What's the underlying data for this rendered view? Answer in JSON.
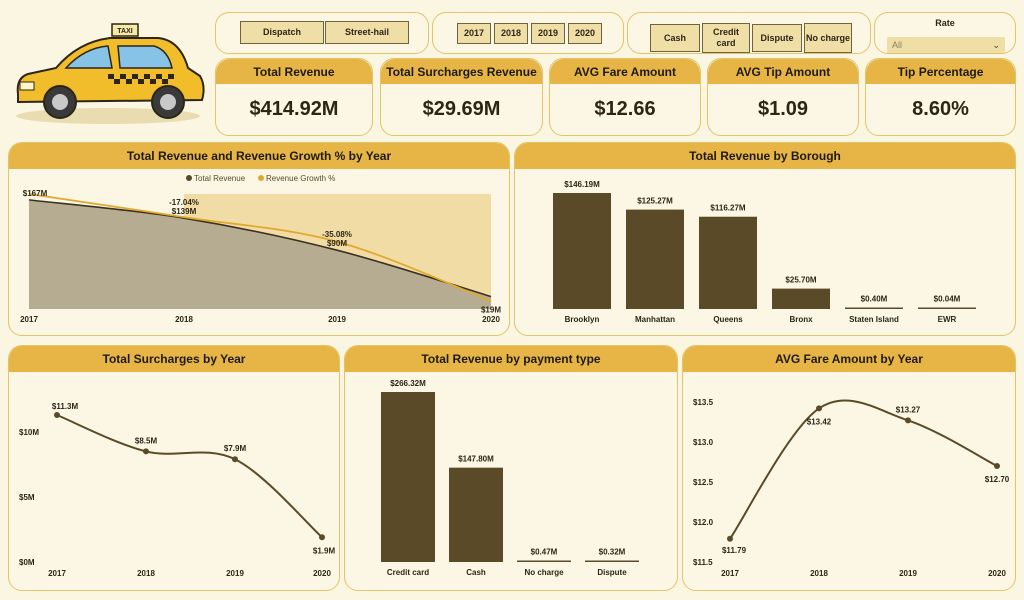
{
  "filters": {
    "trip_type": [
      "Dispatch",
      "Street-hail"
    ],
    "years": [
      "2017",
      "2018",
      "2019",
      "2020"
    ],
    "payment": [
      "Cash",
      "Credit card",
      "Dispute",
      "No charge"
    ],
    "rate": {
      "title": "Rate",
      "value": "All"
    }
  },
  "kpis": [
    {
      "label": "Total Revenue",
      "value": "$414.92M"
    },
    {
      "label": "Total Surcharges Revenue",
      "value": "$29.69M"
    },
    {
      "label": "AVG Fare Amount",
      "value": "$12.66"
    },
    {
      "label": "AVG Tip Amount",
      "value": "$1.09"
    },
    {
      "label": "Tip Percentage",
      "value": "8.60%"
    }
  ],
  "colors": {
    "accent": "#e7b546",
    "dark": "#5b4a28",
    "line": "#e0a92e",
    "area": "#b5ac92",
    "band": "#f2dca6"
  },
  "icons": {
    "logo": "taxi-cab-icon",
    "dropdown": "chevron-down-icon"
  },
  "chart_data": [
    {
      "type": "area",
      "title": "Total Revenue and Revenue Growth % by Year",
      "legend": [
        "Total Revenue",
        "Revenue Growth %"
      ],
      "legend_position": "top-center",
      "categories": [
        "2017",
        "2018",
        "2019",
        "2020"
      ],
      "series": [
        {
          "name": "Total Revenue",
          "values": [
            167,
            139,
            90,
            19
          ],
          "labels": [
            "$167M",
            "$139M",
            "$90M",
            "$19M"
          ]
        },
        {
          "name": "Revenue Growth %",
          "values": [
            null,
            -17.04,
            -35.08,
            -78.9
          ],
          "labels": [
            "",
            "-17.04%",
            "-35.08%",
            ""
          ]
        }
      ]
    },
    {
      "type": "bar",
      "title": "Total Revenue by Borough",
      "categories": [
        "Brooklyn",
        "Manhattan",
        "Queens",
        "Bronx",
        "Staten Island",
        "EWR"
      ],
      "values": [
        146.19,
        125.27,
        116.27,
        25.7,
        0.4,
        0.04
      ],
      "labels": [
        "$146.19M",
        "$125.27M",
        "$116.27M",
        "$25.70M",
        "$0.40M",
        "$0.04M"
      ]
    },
    {
      "type": "line",
      "title": "Total Surcharges by Year",
      "categories": [
        "2017",
        "2018",
        "2019",
        "2020"
      ],
      "values": [
        11.3,
        8.5,
        7.9,
        1.9
      ],
      "labels": [
        "$11.3M",
        "$8.5M",
        "$7.9M",
        "$1.9M"
      ],
      "yticks": [
        "$0M",
        "$5M",
        "$10M"
      ],
      "ylim": [
        0,
        12.3
      ]
    },
    {
      "type": "bar",
      "title": "Total Revenue by payment type",
      "categories": [
        "Credit card",
        "Cash",
        "No charge",
        "Dispute"
      ],
      "values": [
        266.32,
        147.8,
        0.47,
        0.32
      ],
      "labels": [
        "$266.32M",
        "$147.80M",
        "$0.47M",
        "$0.32M"
      ]
    },
    {
      "type": "line",
      "title": "AVG Fare Amount by Year",
      "categories": [
        "2017",
        "2018",
        "2019",
        "2020"
      ],
      "values": [
        11.79,
        13.42,
        13.27,
        12.7
      ],
      "labels": [
        "$11.79",
        "$13.42",
        "$13.27",
        "$12.70"
      ],
      "yticks": [
        "$11.5",
        "$12.0",
        "$12.5",
        "$13.0",
        "$13.5"
      ],
      "ylim": [
        11.5,
        13.5
      ]
    }
  ]
}
